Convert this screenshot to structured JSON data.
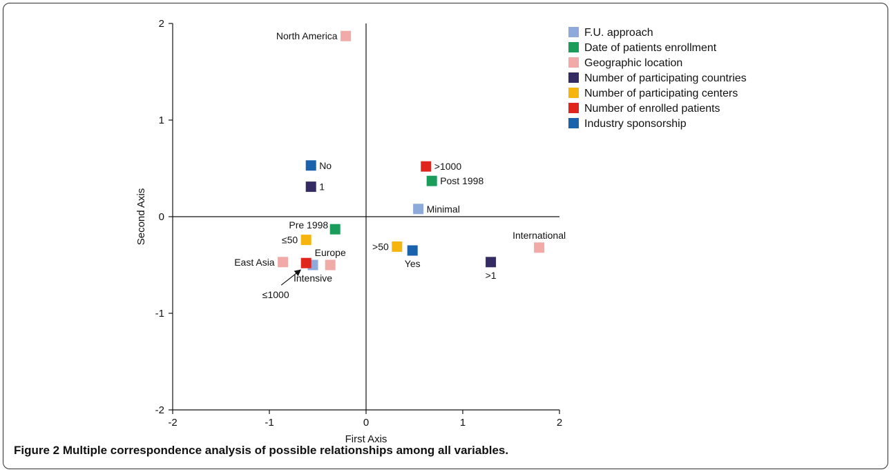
{
  "caption": "Figure 2 Multiple correspondence analysis of possible relationships among all variables.",
  "chart_data": {
    "type": "scatter",
    "xlabel": "First Axis",
    "ylabel": "Second Axis",
    "xlim": [
      -2,
      2
    ],
    "ylim": [
      -2,
      2
    ],
    "xticks": [
      "-2",
      "-1",
      "0",
      "1",
      "2"
    ],
    "yticks": [
      "2",
      "1",
      "0",
      "-1",
      "-2"
    ],
    "grid": false,
    "zero_lines": true,
    "legend_position": "right",
    "legend": [
      {
        "key": "fu",
        "name": "F.U. approach",
        "color": "#8eaadb"
      },
      {
        "key": "date",
        "name": "Date of patients enrollment",
        "color": "#1a9c5a"
      },
      {
        "key": "geo",
        "name": "Geographic location",
        "color": "#f2aaa8"
      },
      {
        "key": "countries",
        "name": "Number of participating countries",
        "color": "#342b62"
      },
      {
        "key": "centers",
        "name": "Number of participating centers",
        "color": "#f6b40e"
      },
      {
        "key": "patients",
        "name": "Number of enrolled patients",
        "color": "#e0251c"
      },
      {
        "key": "industry",
        "name": "Industry sponsorship",
        "color": "#1a62ab"
      }
    ],
    "points": [
      {
        "series": "geo",
        "label": "North America",
        "x": -0.21,
        "y": 1.87,
        "label_pos": "left"
      },
      {
        "series": "industry",
        "label": "No",
        "x": -0.57,
        "y": 0.53,
        "label_pos": "right"
      },
      {
        "series": "countries",
        "label": "1",
        "x": -0.57,
        "y": 0.31,
        "label_pos": "right"
      },
      {
        "series": "patients",
        "label": ">1000",
        "x": 0.62,
        "y": 0.52,
        "label_pos": "right"
      },
      {
        "series": "date",
        "label": "Post 1998",
        "x": 0.68,
        "y": 0.37,
        "label_pos": "right"
      },
      {
        "series": "fu",
        "label": "Minimal",
        "x": 0.54,
        "y": 0.08,
        "label_pos": "right"
      },
      {
        "series": "date",
        "label": "Pre 1998",
        "x": -0.32,
        "y": -0.13,
        "label_pos": "upper-left"
      },
      {
        "series": "centers",
        "label": "≤50",
        "x": -0.62,
        "y": -0.24,
        "label_pos": "left"
      },
      {
        "series": "geo",
        "label": "East Asia",
        "x": -0.86,
        "y": -0.47,
        "label_pos": "left"
      },
      {
        "series": "fu",
        "label": "Intensive",
        "x": -0.55,
        "y": -0.5,
        "label_pos": "below"
      },
      {
        "series": "geo",
        "label": "Europe",
        "x": -0.37,
        "y": -0.5,
        "label_pos": "above"
      },
      {
        "series": "patients",
        "label": "≤1000",
        "x": -0.62,
        "y": -0.48,
        "label_pos": "arrow"
      },
      {
        "series": "centers",
        "label": ">50",
        "x": 0.32,
        "y": -0.31,
        "label_pos": "left"
      },
      {
        "series": "industry",
        "label": "Yes",
        "x": 0.48,
        "y": -0.35,
        "label_pos": "below"
      },
      {
        "series": "countries",
        "label": ">1",
        "x": 1.29,
        "y": -0.47,
        "label_pos": "below"
      },
      {
        "series": "geo",
        "label": "International",
        "x": 1.79,
        "y": -0.32,
        "label_pos": "above"
      }
    ]
  }
}
